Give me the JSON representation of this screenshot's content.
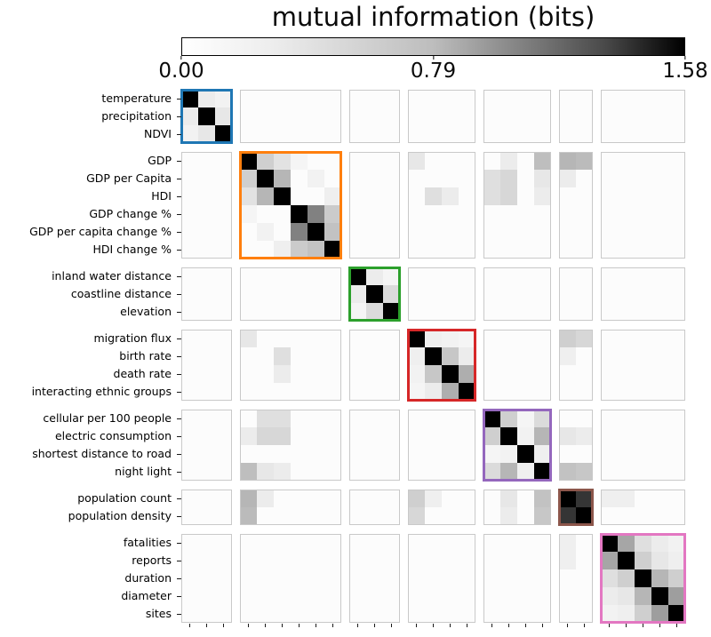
{
  "title": "mutual information (bits)",
  "colorbar": {
    "tick_labels": [
      "0.00",
      "0.79",
      "1.58"
    ],
    "tick_values": [
      0.0,
      0.79,
      1.58
    ],
    "start_color": "#ffffff",
    "end_color": "#000000"
  },
  "chart_data": {
    "type": "heatmap",
    "title": "mutual information (bits)",
    "value_unit": "bits",
    "vmin": 0.0,
    "vmax": 1.58,
    "colormap": "white-to-black",
    "legend_position": "top-colorbar",
    "grid": false,
    "groups": [
      {
        "color": "#1f77b4",
        "labels": [
          "temperature",
          "precipitation",
          "NDVI"
        ]
      },
      {
        "color": "#ff7f0e",
        "labels": [
          "GDP",
          "GDP per Capita",
          "HDI",
          "GDP change %",
          "GDP per capita change %",
          "HDI change %"
        ]
      },
      {
        "color": "#2ca02c",
        "labels": [
          "inland water distance",
          "coastline distance",
          "elevation"
        ]
      },
      {
        "color": "#d62728",
        "labels": [
          "migration flux",
          "birth rate",
          "death rate",
          "interacting ethnic groups"
        ]
      },
      {
        "color": "#9467bd",
        "labels": [
          "cellular per 100 people",
          "electric consumption",
          "shortest distance to road",
          "night light"
        ]
      },
      {
        "color": "#8c564b",
        "labels": [
          "population count",
          "population density"
        ]
      },
      {
        "color": "#e377c2",
        "labels": [
          "fatalities",
          "reports",
          "duration",
          "diameter",
          "sites"
        ]
      }
    ],
    "matrix_encoding": {
      "note": "symmetric 27x27 mutual-information matrix in bits; indices follow flattened group label order",
      "diagonal_value": 1.58,
      "default_offdiagonal_value": 0.02,
      "pairs_symmetric": [
        [
          0,
          1,
          0.12
        ],
        [
          0,
          2,
          0.08
        ],
        [
          1,
          2,
          0.15
        ],
        [
          3,
          4,
          0.3
        ],
        [
          3,
          5,
          0.18
        ],
        [
          3,
          6,
          0.06
        ],
        [
          4,
          5,
          0.45
        ],
        [
          4,
          7,
          0.08
        ],
        [
          5,
          8,
          0.1
        ],
        [
          6,
          7,
          0.78
        ],
        [
          6,
          8,
          0.32
        ],
        [
          7,
          8,
          0.38
        ],
        [
          9,
          10,
          0.12
        ],
        [
          9,
          11,
          0.06
        ],
        [
          10,
          11,
          0.22
        ],
        [
          12,
          13,
          0.1
        ],
        [
          12,
          14,
          0.08
        ],
        [
          12,
          15,
          0.06
        ],
        [
          13,
          14,
          0.35
        ],
        [
          13,
          15,
          0.12
        ],
        [
          14,
          15,
          0.5
        ],
        [
          16,
          17,
          0.3
        ],
        [
          16,
          18,
          0.06
        ],
        [
          16,
          19,
          0.22
        ],
        [
          17,
          18,
          0.08
        ],
        [
          17,
          19,
          0.45
        ],
        [
          18,
          19,
          0.1
        ],
        [
          20,
          21,
          1.25
        ],
        [
          22,
          23,
          0.55
        ],
        [
          22,
          24,
          0.2
        ],
        [
          22,
          25,
          0.12
        ],
        [
          22,
          26,
          0.08
        ],
        [
          23,
          24,
          0.3
        ],
        [
          23,
          25,
          0.15
        ],
        [
          23,
          26,
          0.1
        ],
        [
          24,
          25,
          0.45
        ],
        [
          24,
          26,
          0.3
        ],
        [
          25,
          26,
          0.6
        ],
        [
          3,
          12,
          0.15
        ],
        [
          3,
          17,
          0.12
        ],
        [
          3,
          19,
          0.4
        ],
        [
          3,
          20,
          0.45
        ],
        [
          3,
          21,
          0.42
        ],
        [
          4,
          16,
          0.2
        ],
        [
          4,
          17,
          0.25
        ],
        [
          4,
          19,
          0.15
        ],
        [
          4,
          20,
          0.12
        ],
        [
          5,
          13,
          0.2
        ],
        [
          5,
          14,
          0.12
        ],
        [
          5,
          16,
          0.2
        ],
        [
          5,
          17,
          0.25
        ],
        [
          5,
          19,
          0.12
        ],
        [
          12,
          20,
          0.3
        ],
        [
          12,
          21,
          0.25
        ],
        [
          13,
          20,
          0.1
        ],
        [
          17,
          20,
          0.15
        ],
        [
          17,
          21,
          0.12
        ],
        [
          19,
          20,
          0.38
        ],
        [
          19,
          21,
          0.35
        ],
        [
          22,
          20,
          0.1
        ],
        [
          23,
          20,
          0.1
        ]
      ]
    }
  }
}
